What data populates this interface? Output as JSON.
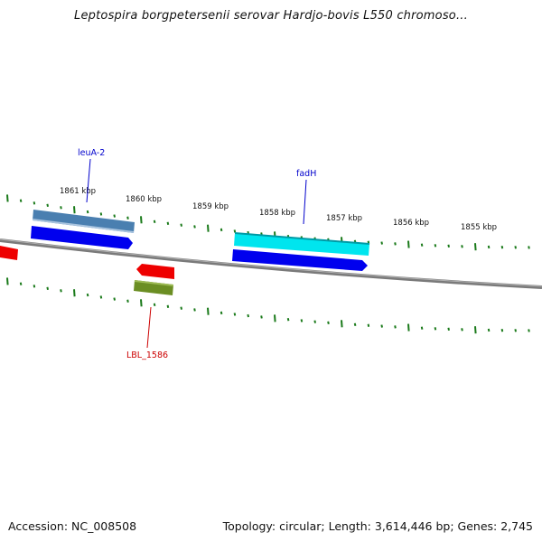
{
  "title": "Leptospira borgpetersenii serovar Hardjo-bovis L550 chromoso...",
  "footer": {
    "accession": "Accession: NC_008508",
    "summary": "Topology: circular; Length: 3,614,446 bp; Genes: 2,745"
  },
  "scale_labels": [
    "1861 kbp",
    "1860 kbp",
    "1859 kbp",
    "1858 kbp",
    "1857 kbp",
    "1856 kbp",
    "1855 kbp"
  ],
  "genes": [
    {
      "name": "leuA-2",
      "color": "#0000cc"
    },
    {
      "name": "fadH",
      "color": "#0000cc"
    },
    {
      "name": "LBL_1586",
      "color": "#cc0000"
    }
  ],
  "colors": {
    "backbone": "#777777",
    "tick": "#1a7a1a",
    "cds_forward": "#0000ee",
    "cds_reverse": "#ee0000",
    "gene_steel": "#4a7fb0",
    "gene_cyan": "#00e5ee",
    "gene_olive": "#6b8e23"
  }
}
